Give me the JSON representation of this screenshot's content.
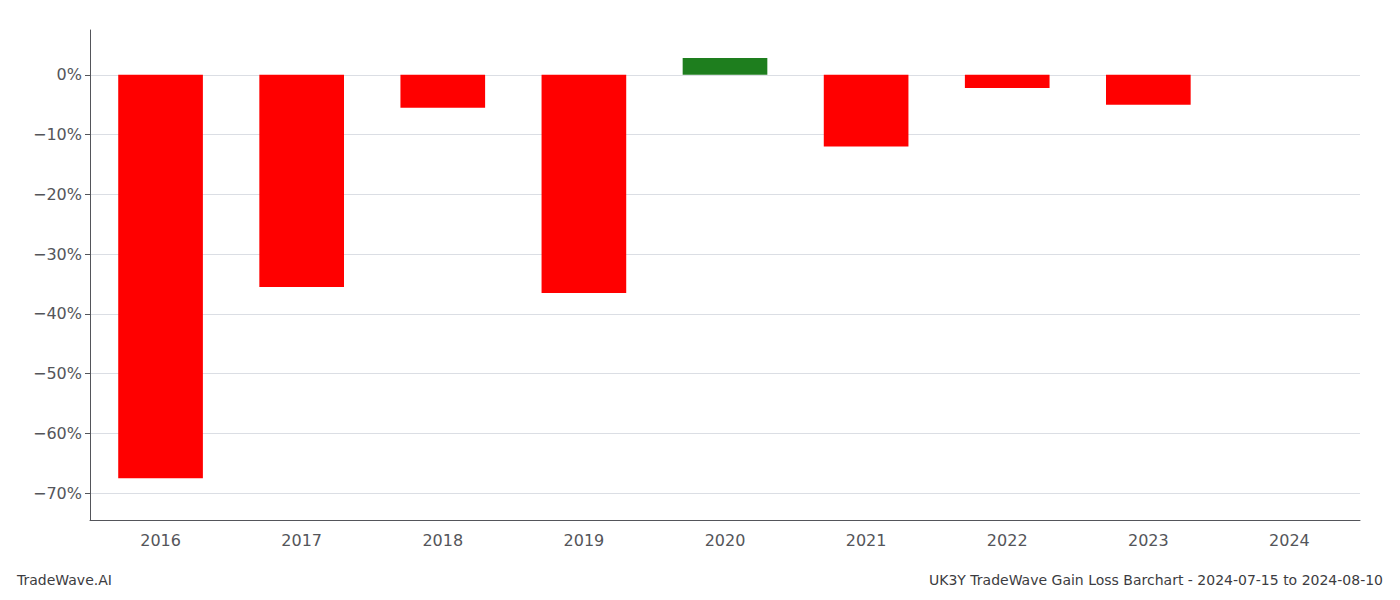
{
  "chart_data": {
    "type": "bar",
    "categories": [
      "2016",
      "2017",
      "2018",
      "2019",
      "2020",
      "2021",
      "2022",
      "2023",
      "2024"
    ],
    "values": [
      -0.675,
      -0.355,
      -0.055,
      -0.365,
      0.028,
      -0.12,
      -0.022,
      -0.05,
      0.0
    ],
    "colors": [
      "#ff0000",
      "#ff0000",
      "#ff0000",
      "#ff0000",
      "#1e7e1e",
      "#ff0000",
      "#ff0000",
      "#ff0000",
      "#ff0000"
    ],
    "ylim": [
      -0.745,
      0.075
    ],
    "yticks": [
      {
        "value": 0.0,
        "label": "0%"
      },
      {
        "value": -0.1,
        "label": "−10%"
      },
      {
        "value": -0.2,
        "label": "−20%"
      },
      {
        "value": -0.3,
        "label": "−30%"
      },
      {
        "value": -0.4,
        "label": "−40%"
      },
      {
        "value": -0.5,
        "label": "−50%"
      },
      {
        "value": -0.6,
        "label": "−60%"
      },
      {
        "value": -0.7,
        "label": "−70%"
      }
    ],
    "grid": true,
    "annotations": [
      "TradeWave.AI",
      "UK3Y TradeWave Gain Loss Barchart - 2024-07-15 to 2024-08-10"
    ]
  }
}
